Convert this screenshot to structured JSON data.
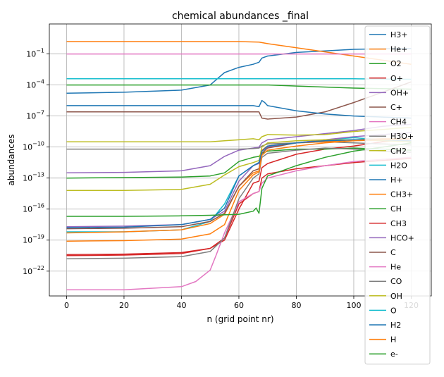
{
  "chart_data": {
    "type": "line",
    "title": "chemical abundances _final",
    "xlabel": "n (grid point nr)",
    "ylabel": "abundances",
    "yscale": "log",
    "grid": true,
    "legend_position": "right (overlapping plot)",
    "xlim": [
      -6,
      127
    ],
    "ylim_log10": [
      -24.4,
      1.9
    ],
    "x_ticks": [
      0,
      20,
      40,
      60,
      80,
      100,
      120
    ],
    "x_tick_labels": [
      "0",
      "20",
      "40",
      "60",
      "80",
      "100",
      "120"
    ],
    "y_ticks_log10": [
      -22,
      -19,
      -16,
      -13,
      -10,
      -7,
      -4,
      -1
    ],
    "y_tick_labels": [
      "10−22",
      "10−19",
      "10−16",
      "10−13",
      "10−10",
      "10−7",
      "10−4",
      "10−1"
    ],
    "series": [
      {
        "name": "H3+",
        "color": "#1f77b4",
        "x": [
          0,
          20,
          40,
          50,
          55,
          60,
          65,
          67,
          68,
          70,
          80,
          90,
          100,
          110,
          120
        ],
        "log10y": [
          -4.8,
          -4.7,
          -4.5,
          -4.0,
          -2.8,
          -2.3,
          -2.0,
          -1.8,
          -1.4,
          -1.2,
          -0.85,
          -0.7,
          -0.55,
          -0.5,
          -0.48
        ]
      },
      {
        "name": "He+",
        "color": "#ff7f0e",
        "x": [
          0,
          20,
          40,
          60,
          67,
          70,
          80,
          90,
          100,
          110,
          120
        ],
        "log10y": [
          0.2,
          0.2,
          0.2,
          0.2,
          0.15,
          0.0,
          -0.4,
          -0.8,
          -1.2,
          -1.6,
          -2.0
        ]
      },
      {
        "name": "O2",
        "color": "#2ca02c",
        "x": [
          0,
          20,
          40,
          60,
          70,
          80,
          100,
          110,
          120
        ],
        "log10y": [
          -4.0,
          -4.0,
          -4.0,
          -4.0,
          -4.0,
          -4.1,
          -4.3,
          -4.35,
          -4.4
        ]
      },
      {
        "name": "O+",
        "color": "#d62728",
        "x": [
          0,
          20,
          40,
          50,
          55,
          60,
          65,
          67,
          68,
          70,
          80,
          90,
          100,
          110,
          120
        ],
        "log10y": [
          -20.5,
          -20.45,
          -20.3,
          -19.8,
          -19.0,
          -16.0,
          -13.5,
          -13.3,
          -12.0,
          -11.6,
          -10.7,
          -10.2,
          -9.9,
          -9.5,
          -9.2
        ]
      },
      {
        "name": "OH+",
        "color": "#9467bd",
        "x": [
          0,
          20,
          40,
          50,
          55,
          60,
          65,
          67,
          68,
          70,
          80,
          90,
          100,
          110,
          120
        ],
        "log10y": [
          -12.5,
          -12.45,
          -12.3,
          -11.8,
          -10.9,
          -10.3,
          -10.1,
          -10.0,
          -9.6,
          -9.3,
          -9.0,
          -8.7,
          -8.4,
          -8.0,
          -7.8
        ]
      },
      {
        "name": "C+",
        "color": "#8c564b",
        "x": [
          0,
          20,
          40,
          60,
          66,
          67,
          68,
          70,
          80,
          90,
          100,
          110,
          120
        ],
        "log10y": [
          -6.6,
          -6.6,
          -6.6,
          -6.6,
          -6.6,
          -6.6,
          -7.2,
          -7.3,
          -7.1,
          -6.6,
          -5.7,
          -4.7,
          -3.7
        ]
      },
      {
        "name": "CH4",
        "color": "#e377c2",
        "x": [
          0,
          20,
          40,
          60,
          80,
          100,
          110,
          120
        ],
        "log10y": [
          -1.0,
          -1.0,
          -1.0,
          -1.0,
          -1.0,
          -1.0,
          -1.0,
          -1.0
        ]
      },
      {
        "name": "H3O+",
        "color": "#7f7f7f",
        "x": [
          0,
          20,
          40,
          50,
          55,
          60,
          65,
          67,
          68,
          70,
          80,
          90,
          100,
          110,
          120
        ],
        "log10y": [
          -10.2,
          -10.2,
          -10.2,
          -10.2,
          -10.2,
          -10.2,
          -10.15,
          -10.1,
          -9.9,
          -9.7,
          -9.6,
          -9.5,
          -9.6,
          -9.7,
          -9.8
        ]
      },
      {
        "name": "CH2",
        "color": "#bcbd22",
        "x": [
          0,
          20,
          40,
          50,
          55,
          60,
          65,
          67,
          68,
          70,
          80,
          90,
          100,
          110,
          120
        ],
        "log10y": [
          -9.5,
          -9.5,
          -9.5,
          -9.5,
          -9.4,
          -9.3,
          -9.2,
          -9.3,
          -9.0,
          -8.8,
          -8.85,
          -8.8,
          -8.5,
          -8.3,
          -8.1
        ]
      },
      {
        "name": "H2O",
        "color": "#17becf",
        "x": [
          0,
          20,
          40,
          50,
          55,
          60,
          65,
          67,
          68,
          70,
          80,
          90,
          100,
          110,
          120
        ],
        "log10y": [
          -18.2,
          -18.2,
          -18.0,
          -17.2,
          -15.5,
          -12.8,
          -11.8,
          -11.5,
          -10.4,
          -10.0,
          -9.6,
          -9.3,
          -9.1,
          -9.3,
          -9.5
        ]
      },
      {
        "name": "H+",
        "color": "#1f77b4",
        "x": [
          0,
          20,
          40,
          60,
          65,
          67,
          68,
          69,
          70,
          80,
          90,
          100,
          110,
          120
        ],
        "log10y": [
          -6.0,
          -6.0,
          -6.0,
          -6.0,
          -6.0,
          -6.1,
          -5.5,
          -5.7,
          -6.0,
          -6.5,
          -6.8,
          -7.0,
          -7.1,
          -7.2
        ]
      },
      {
        "name": "CH3+",
        "color": "#ff7f0e",
        "x": [
          0,
          20,
          40,
          50,
          55,
          60,
          65,
          67,
          68,
          70,
          80,
          90,
          100,
          110,
          120
        ],
        "log10y": [
          -18.3,
          -18.2,
          -18.0,
          -17.4,
          -16.5,
          -13.8,
          -12.5,
          -12.3,
          -10.3,
          -9.9,
          -9.6,
          -9.5,
          -9.3,
          -9.2,
          -9.2
        ]
      },
      {
        "name": "CH",
        "color": "#2ca02c",
        "x": [
          0,
          20,
          40,
          50,
          55,
          60,
          65,
          67,
          68,
          70,
          80,
          90,
          100,
          110,
          120
        ],
        "log10y": [
          -13.0,
          -12.95,
          -12.9,
          -12.8,
          -12.5,
          -11.4,
          -11.0,
          -10.9,
          -10.6,
          -10.4,
          -10.2,
          -10.2,
          -10.1,
          -10.2,
          -10.3
        ]
      },
      {
        "name": "CH3",
        "color": "#d62728",
        "x": [
          0,
          20,
          40,
          50,
          55,
          60,
          65,
          67,
          68,
          70,
          80,
          90,
          100,
          110,
          120
        ],
        "log10y": [
          -20.4,
          -20.35,
          -20.2,
          -19.8,
          -18.8,
          -15.5,
          -14.5,
          -14.3,
          -13.0,
          -12.6,
          -12.1,
          -11.8,
          -11.5,
          -11.3,
          -11.1
        ]
      },
      {
        "name": "HCO+",
        "color": "#9467bd",
        "x": [
          0,
          20,
          40,
          50,
          55,
          60,
          65,
          67,
          68,
          70,
          80,
          90,
          100,
          110,
          120
        ],
        "log10y": [
          -17.7,
          -17.65,
          -17.5,
          -17.0,
          -16.2,
          -13.3,
          -11.8,
          -11.6,
          -10.4,
          -10.0,
          -9.6,
          -9.3,
          -9.0,
          -8.8,
          -8.6
        ]
      },
      {
        "name": "C",
        "color": "#8c564b",
        "x": [
          0,
          20,
          40,
          50,
          55,
          60,
          65,
          67,
          68,
          70,
          80,
          90,
          100,
          110,
          120
        ],
        "log10y": [
          -17.9,
          -17.85,
          -17.7,
          -17.2,
          -16.4,
          -13.8,
          -12.3,
          -12.1,
          -10.6,
          -10.1,
          -9.6,
          -9.4,
          -9.3,
          -9.3,
          -9.4
        ]
      },
      {
        "name": "He",
        "color": "#e377c2",
        "x": [
          0,
          20,
          40,
          45,
          50,
          52,
          55,
          58,
          60,
          65,
          67,
          68,
          70,
          80,
          90,
          100,
          110,
          120
        ],
        "log10y": [
          -23.8,
          -23.8,
          -23.5,
          -23.0,
          -21.9,
          -20.5,
          -18.3,
          -16.5,
          -15.3,
          -14.5,
          -14.3,
          -13.5,
          -13.0,
          -12.3,
          -11.8,
          -11.4,
          -11.2,
          -11.0
        ]
      },
      {
        "name": "CO",
        "color": "#7f7f7f",
        "x": [
          0,
          20,
          40,
          50,
          55,
          60,
          65,
          67,
          68,
          70,
          80,
          90,
          100,
          110,
          120
        ],
        "log10y": [
          -20.8,
          -20.75,
          -20.6,
          -20.1,
          -18.8,
          -15.0,
          -13.0,
          -12.6,
          -11.0,
          -10.6,
          -10.3,
          -10.1,
          -10.2,
          -10.4,
          -10.5
        ]
      },
      {
        "name": "OH",
        "color": "#bcbd22",
        "x": [
          0,
          20,
          40,
          50,
          55,
          60,
          65,
          67,
          68,
          70,
          80,
          90,
          100,
          110,
          120
        ],
        "log10y": [
          -14.2,
          -14.2,
          -14.1,
          -13.6,
          -12.7,
          -11.9,
          -11.5,
          -11.3,
          -10.0,
          -9.6,
          -9.4,
          -9.3,
          -9.3,
          -9.4,
          -9.5
        ]
      },
      {
        "name": "O",
        "color": "#17becf",
        "x": [
          0,
          20,
          40,
          60,
          80,
          100,
          110,
          120
        ],
        "log10y": [
          -3.4,
          -3.4,
          -3.4,
          -3.4,
          -3.4,
          -3.4,
          -3.42,
          -3.45
        ]
      },
      {
        "name": "H2",
        "color": "#1f77b4",
        "x": [
          0,
          20,
          40,
          50,
          55,
          60,
          65,
          67,
          68,
          70,
          80,
          90,
          100,
          110,
          120
        ],
        "log10y": [
          -17.8,
          -17.75,
          -17.5,
          -17.0,
          -15.9,
          -12.8,
          -11.8,
          -11.5,
          -10.4,
          -9.9,
          -9.6,
          -9.4,
          -9.3,
          -9.3,
          -9.4
        ]
      },
      {
        "name": "H",
        "color": "#ff7f0e",
        "x": [
          0,
          20,
          40,
          50,
          55,
          60,
          65,
          67,
          68,
          70,
          80,
          90,
          100,
          110,
          120
        ],
        "log10y": [
          -19.1,
          -19.05,
          -18.9,
          -18.4,
          -17.5,
          -14.2,
          -12.7,
          -12.4,
          -10.8,
          -10.3,
          -9.9,
          -9.6,
          -9.4,
          -9.3,
          -9.2
        ]
      },
      {
        "name": "e-",
        "color": "#2ca02c",
        "x": [
          0,
          20,
          40,
          50,
          60,
          65,
          66,
          67,
          68,
          70,
          80,
          90,
          100,
          110,
          120
        ],
        "log10y": [
          -16.7,
          -16.7,
          -16.65,
          -16.6,
          -16.5,
          -16.2,
          -15.9,
          -16.4,
          -14.0,
          -12.8,
          -11.8,
          -11.0,
          -10.4,
          -10.0,
          -9.6
        ]
      }
    ]
  }
}
